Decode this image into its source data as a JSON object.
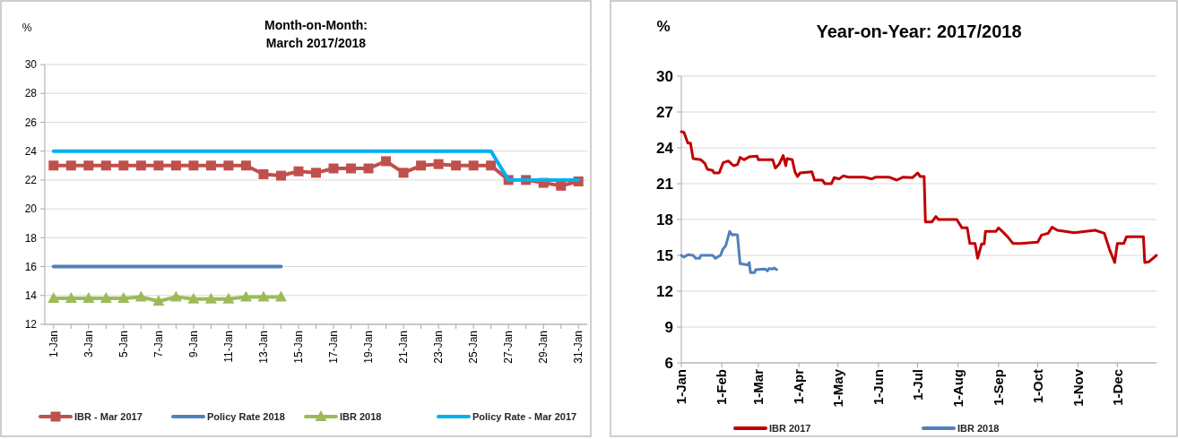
{
  "chart_data": [
    {
      "type": "line",
      "title": "Month-on-Month:\nMarch 2017/2018",
      "ylabel": "%",
      "categories": [
        "1-Jan",
        null,
        "3-Jan",
        null,
        "5-Jan",
        null,
        "7-Jan",
        null,
        "9-Jan",
        null,
        "11-Jan",
        null,
        "13-Jan",
        null,
        "15-Jan",
        null,
        "17-Jan",
        null,
        "19-Jan",
        null,
        "21-Jan",
        null,
        "23-Jan",
        null,
        "25-Jan",
        null,
        "27-Jan",
        null,
        "29-Jan",
        null,
        "31-Jan"
      ],
      "series": [
        {
          "name": "IBR - Mar 2017",
          "color": "#c0504d",
          "marker": "square",
          "values": [
            23,
            23,
            23,
            23,
            23,
            23,
            23,
            23,
            23,
            23,
            23,
            23,
            22.4,
            22.3,
            22.6,
            22.5,
            22.8,
            22.8,
            22.8,
            23.3,
            22.5,
            23.0,
            23.1,
            23.0,
            23.0,
            23.0,
            22.0,
            22.0,
            21.8,
            21.6,
            21.9
          ]
        },
        {
          "name": "Policy Rate 2018",
          "color": "#4f81bd",
          "values": [
            16,
            16,
            16,
            16,
            16,
            16,
            16,
            16,
            16,
            16,
            16,
            16,
            16,
            16,
            null,
            null,
            null,
            null,
            null,
            null,
            null,
            null,
            null,
            null,
            null,
            null,
            null,
            null,
            null,
            null,
            null
          ]
        },
        {
          "name": "IBR 2018",
          "color": "#9bbb59",
          "marker": "triangle",
          "values": [
            13.8,
            13.8,
            13.8,
            13.8,
            13.8,
            13.9,
            13.6,
            13.9,
            13.75,
            13.75,
            13.75,
            13.9,
            13.9,
            13.9,
            null,
            null,
            null,
            null,
            null,
            null,
            null,
            null,
            null,
            null,
            null,
            null,
            null,
            null,
            null,
            null,
            null
          ]
        },
        {
          "name": "Policy Rate - Mar 2017",
          "color": "#00b0f0",
          "values": [
            24,
            24,
            24,
            24,
            24,
            24,
            24,
            24,
            24,
            24,
            24,
            24,
            24,
            24,
            24,
            24,
            24,
            24,
            24,
            24,
            24,
            24,
            24,
            24,
            24,
            24,
            22,
            22,
            22,
            22,
            22
          ]
        }
      ],
      "ylim": [
        12,
        30
      ],
      "yticks": [
        12,
        14,
        16,
        18,
        20,
        22,
        24,
        26,
        28,
        30
      ],
      "grid": "y",
      "legend": "bottom"
    },
    {
      "type": "line",
      "title": "Year-on-Year: 2017/2018",
      "ylabel": "%",
      "xlim": [
        "--01-01",
        "--12-31"
      ],
      "xticks": [
        {
          "value": "--01-01",
          "label": "1-Jan"
        },
        {
          "value": "--02-01",
          "label": "1-Feb"
        },
        {
          "value": "--03-01",
          "label": "1-Mar"
        },
        {
          "value": "--04-01",
          "label": "1-Apr"
        },
        {
          "value": "--05-01",
          "label": "1-May"
        },
        {
          "value": "--06-01",
          "label": "1-Jun"
        },
        {
          "value": "--07-01",
          "label": "1-Jul"
        },
        {
          "value": "--08-01",
          "label": "1-Aug"
        },
        {
          "value": "--09-01",
          "label": "1-Sep"
        },
        {
          "value": "--10-01",
          "label": "1-Oct"
        },
        {
          "value": "--11-01",
          "label": "1-Nov"
        },
        {
          "value": "--12-01",
          "label": "1-Dec"
        }
      ],
      "series": [
        {
          "name": "IBR 2017",
          "color": "#c00000",
          "x": [
            "--01-01",
            "--01-03",
            "--01-06",
            "--01-08",
            "--01-10",
            "--01-16",
            "--01-19",
            "--01-21",
            "--01-25",
            "--01-26",
            "--01-30",
            "--02-02",
            "--02-06",
            "--02-10",
            "--02-13",
            "--02-15",
            "--02-18",
            "--02-22",
            "--02-28",
            "--03-01",
            "--03-12",
            "--03-14",
            "--03-17",
            "--03-20",
            "--03-22",
            "--03-23",
            "--03-27",
            "--03-29",
            "--03-31",
            "--04-02",
            "--04-11",
            "--04-13",
            "--04-19",
            "--04-21",
            "--04-26",
            "--04-28",
            "--05-02",
            "--05-05",
            "--05-09",
            "--05-21",
            "--05-27",
            "--05-30",
            "--06-09",
            "--06-15",
            "--06-20",
            "--06-27",
            "--07-01",
            "--07-03",
            "--07-06",
            "--07-07",
            "--07-12",
            "--07-15",
            "--07-17",
            "--07-31",
            "--08-04",
            "--08-08",
            "--08-10",
            "--08-14",
            "--08-16",
            "--08-19",
            "--08-21",
            "--08-22",
            "--08-30",
            "--09-01",
            "--09-04",
            "--09-08",
            "--09-12",
            "--09-18",
            "--10-01",
            "--10-04",
            "--10-09",
            "--10-12",
            "--10-16",
            "--10-29",
            "--11-14",
            "--11-21",
            "--11-25",
            "--11-29",
            "--12-01",
            "--12-06",
            "--12-08",
            "--12-16",
            "--12-21",
            "--12-22",
            "--12-25",
            "--12-31"
          ],
          "values": [
            25.35,
            25.3,
            24.4,
            24.4,
            23.1,
            23.0,
            22.7,
            22.2,
            22.1,
            21.9,
            21.9,
            22.75,
            22.9,
            22.5,
            22.6,
            23.2,
            23.0,
            23.25,
            23.3,
            23.0,
            23.0,
            22.3,
            22.65,
            23.35,
            22.5,
            23.1,
            23.0,
            22.0,
            21.6,
            21.9,
            22.0,
            21.3,
            21.3,
            21.0,
            21.0,
            21.5,
            21.4,
            21.65,
            21.55,
            21.55,
            21.4,
            21.55,
            21.55,
            21.3,
            21.55,
            21.5,
            21.9,
            21.6,
            21.6,
            17.8,
            17.8,
            18.25,
            18.0,
            18.0,
            17.3,
            17.3,
            16.0,
            16.0,
            14.75,
            15.95,
            15.95,
            17.0,
            17.0,
            17.3,
            17.0,
            16.55,
            16.0,
            16.0,
            16.1,
            16.7,
            16.85,
            17.35,
            17.1,
            16.9,
            17.1,
            16.85,
            15.5,
            14.4,
            16.0,
            16.0,
            16.55,
            16.55,
            16.55,
            14.4,
            14.45,
            15.0
          ]
        },
        {
          "name": "IBR 2018",
          "color": "#4f81bd",
          "x": [
            "--01-01",
            "--01-03",
            "--01-06",
            "--01-10",
            "--01-12",
            "--01-15",
            "--01-16",
            "--01-25",
            "--01-27",
            "--01-31",
            "--02-02",
            "--02-04",
            "--02-07",
            "--02-09",
            "--02-11",
            "--02-13",
            "--02-15",
            "--02-21",
            "--02-22",
            "--02-23",
            "--02-26",
            "--02-27",
            "--03-06",
            "--03-08",
            "--03-09",
            "--03-12",
            "--03-13",
            "--03-15"
          ],
          "values": [
            15.0,
            14.85,
            15.05,
            15.0,
            14.75,
            14.75,
            15.0,
            15.0,
            14.75,
            15.0,
            15.55,
            15.8,
            17.0,
            16.7,
            16.75,
            16.7,
            14.3,
            14.2,
            14.4,
            13.55,
            13.55,
            13.8,
            13.85,
            13.7,
            13.9,
            13.85,
            13.95,
            13.8
          ]
        }
      ],
      "ylim": [
        6,
        30
      ],
      "yticks": [
        6,
        9,
        12,
        15,
        18,
        21,
        24,
        27,
        30
      ],
      "grid": "y",
      "legend": "bottom"
    }
  ]
}
